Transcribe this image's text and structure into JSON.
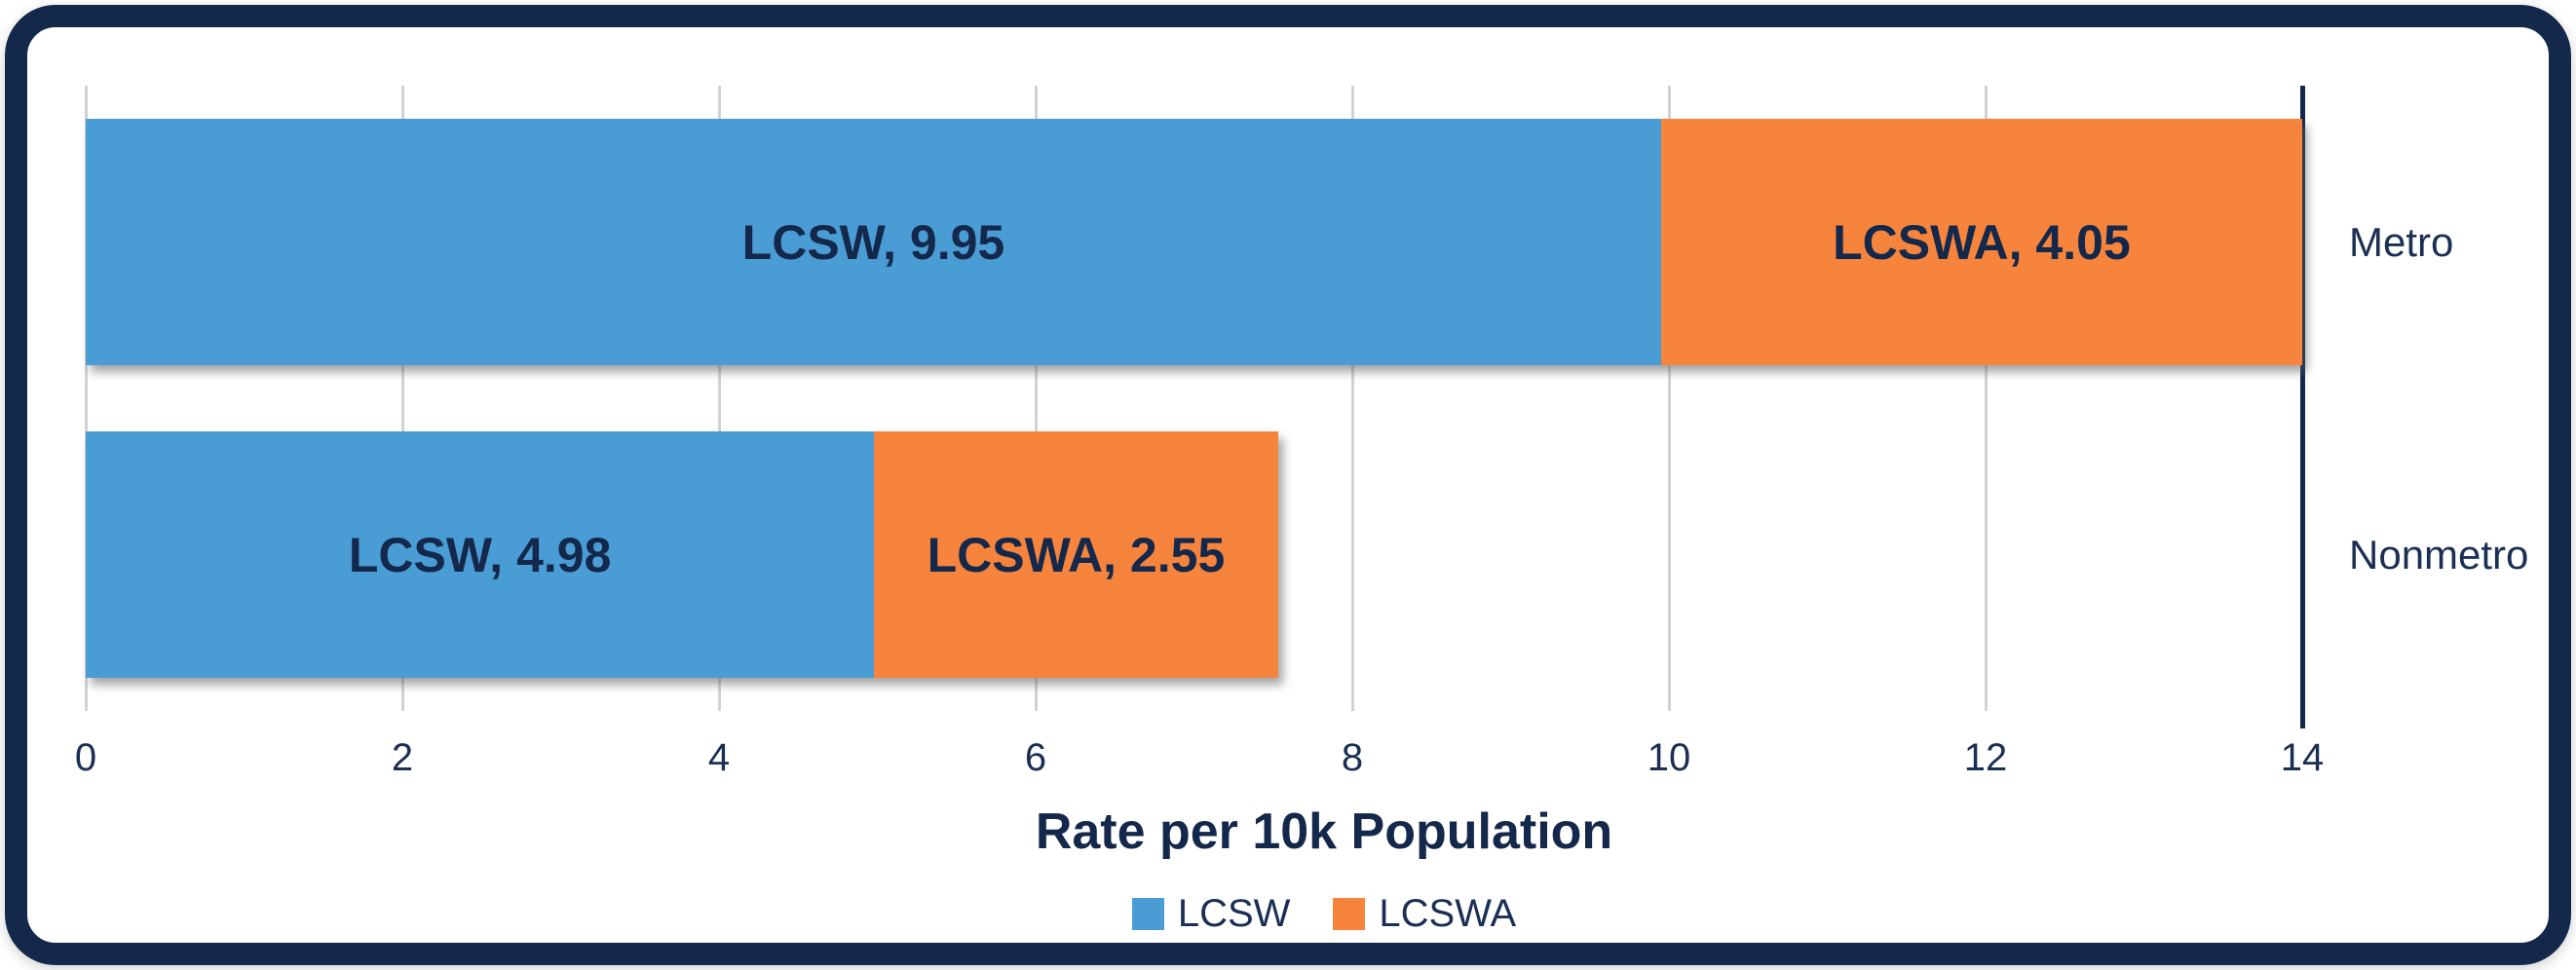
{
  "chart_data": {
    "type": "bar",
    "orientation": "horizontal",
    "stacked": true,
    "title": "",
    "xlabel": "Rate per 10k Population",
    "ylabel": "",
    "xlim": [
      0,
      14
    ],
    "xticks": [
      0,
      2,
      4,
      6,
      8,
      10,
      12,
      14
    ],
    "grid": true,
    "categories": [
      "Metro",
      "Nonmetro"
    ],
    "series": [
      {
        "name": "LCSW",
        "color": "#4A9CD4",
        "values": [
          9.95,
          4.98
        ],
        "data_labels": [
          "LCSW, 9.95",
          "LCSW, 4.98"
        ]
      },
      {
        "name": "LCSWA",
        "color": "#F7843C",
        "values": [
          4.05,
          2.55
        ],
        "data_labels": [
          "LCSWA, 4.05",
          "LCSWA, 2.55"
        ]
      }
    ],
    "legend": {
      "position": "bottom"
    }
  },
  "colors": {
    "card_border": "#14284B",
    "axis_line": "#14284B",
    "gridline": "#D2D2D2",
    "text": "#1B2F54",
    "data_label_text": "#14284B",
    "background": "#FFFFFF"
  }
}
